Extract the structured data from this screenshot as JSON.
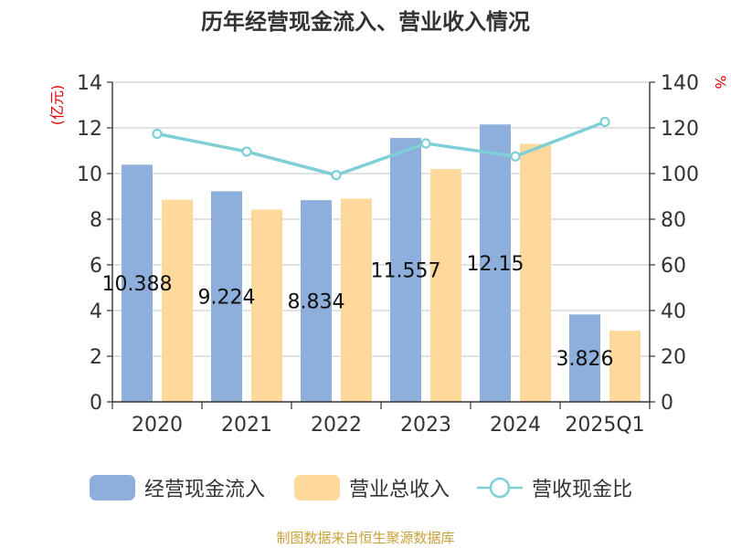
{
  "chart_data": {
    "type": "bar",
    "title": "历年经营现金流入、营业收入情况",
    "categories": [
      "2020",
      "2021",
      "2022",
      "2023",
      "2024",
      "2025Q1"
    ],
    "series": [
      {
        "name": "经营现金流入",
        "kind": "bar",
        "axis": "left",
        "color": "#8eaedb",
        "values": [
          10.388,
          9.224,
          8.834,
          11.557,
          12.15,
          3.826
        ],
        "labels": [
          "10.388",
          "9.224",
          "8.834",
          "11.557",
          "12.15",
          "3.826"
        ]
      },
      {
        "name": "营业总收入",
        "kind": "bar",
        "axis": "left",
        "color": "#fed99b",
        "values": [
          8.85,
          8.42,
          8.9,
          10.2,
          11.3,
          3.12
        ]
      },
      {
        "name": "营收现金比",
        "kind": "line",
        "axis": "right",
        "color": "#7fd0d6",
        "values": [
          117.4,
          109.6,
          99.3,
          113.2,
          107.5,
          122.6
        ]
      }
    ],
    "ylabel_left": "(亿元)",
    "ylabel_right": "%",
    "ylim_left": [
      0,
      14
    ],
    "yticks_left": [
      "0",
      "2",
      "4",
      "6",
      "8",
      "10",
      "12",
      "14"
    ],
    "ylim_right": [
      0,
      140
    ],
    "yticks_right": [
      "0",
      "20",
      "40",
      "60",
      "80",
      "100",
      "120",
      "140"
    ],
    "grid": true,
    "legend_position": "bottom"
  },
  "source": "制图数据来自恒生聚源数据库"
}
